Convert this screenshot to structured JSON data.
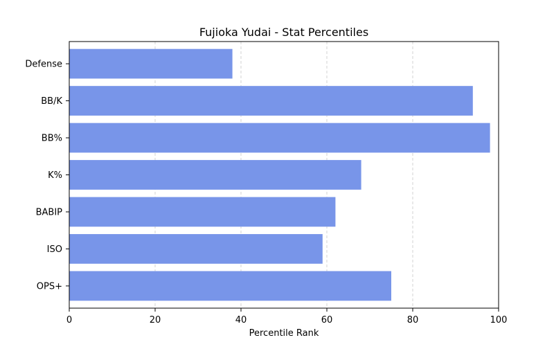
{
  "chart_data": {
    "type": "bar",
    "orientation": "horizontal",
    "title": "Fujioka Yudai - Stat Percentiles",
    "xlabel": "Percentile Rank",
    "ylabel": "",
    "categories": [
      "Defense",
      "BB/K",
      "BB%",
      "K%",
      "BABIP",
      "ISO",
      "OPS+"
    ],
    "values": [
      38,
      94,
      98,
      68,
      62,
      59,
      75
    ],
    "xlim": [
      0,
      100
    ],
    "xticks": [
      "0",
      "20",
      "40",
      "60",
      "80",
      "100"
    ],
    "grid": "x-dashed",
    "bar_color": "#7895e9"
  }
}
